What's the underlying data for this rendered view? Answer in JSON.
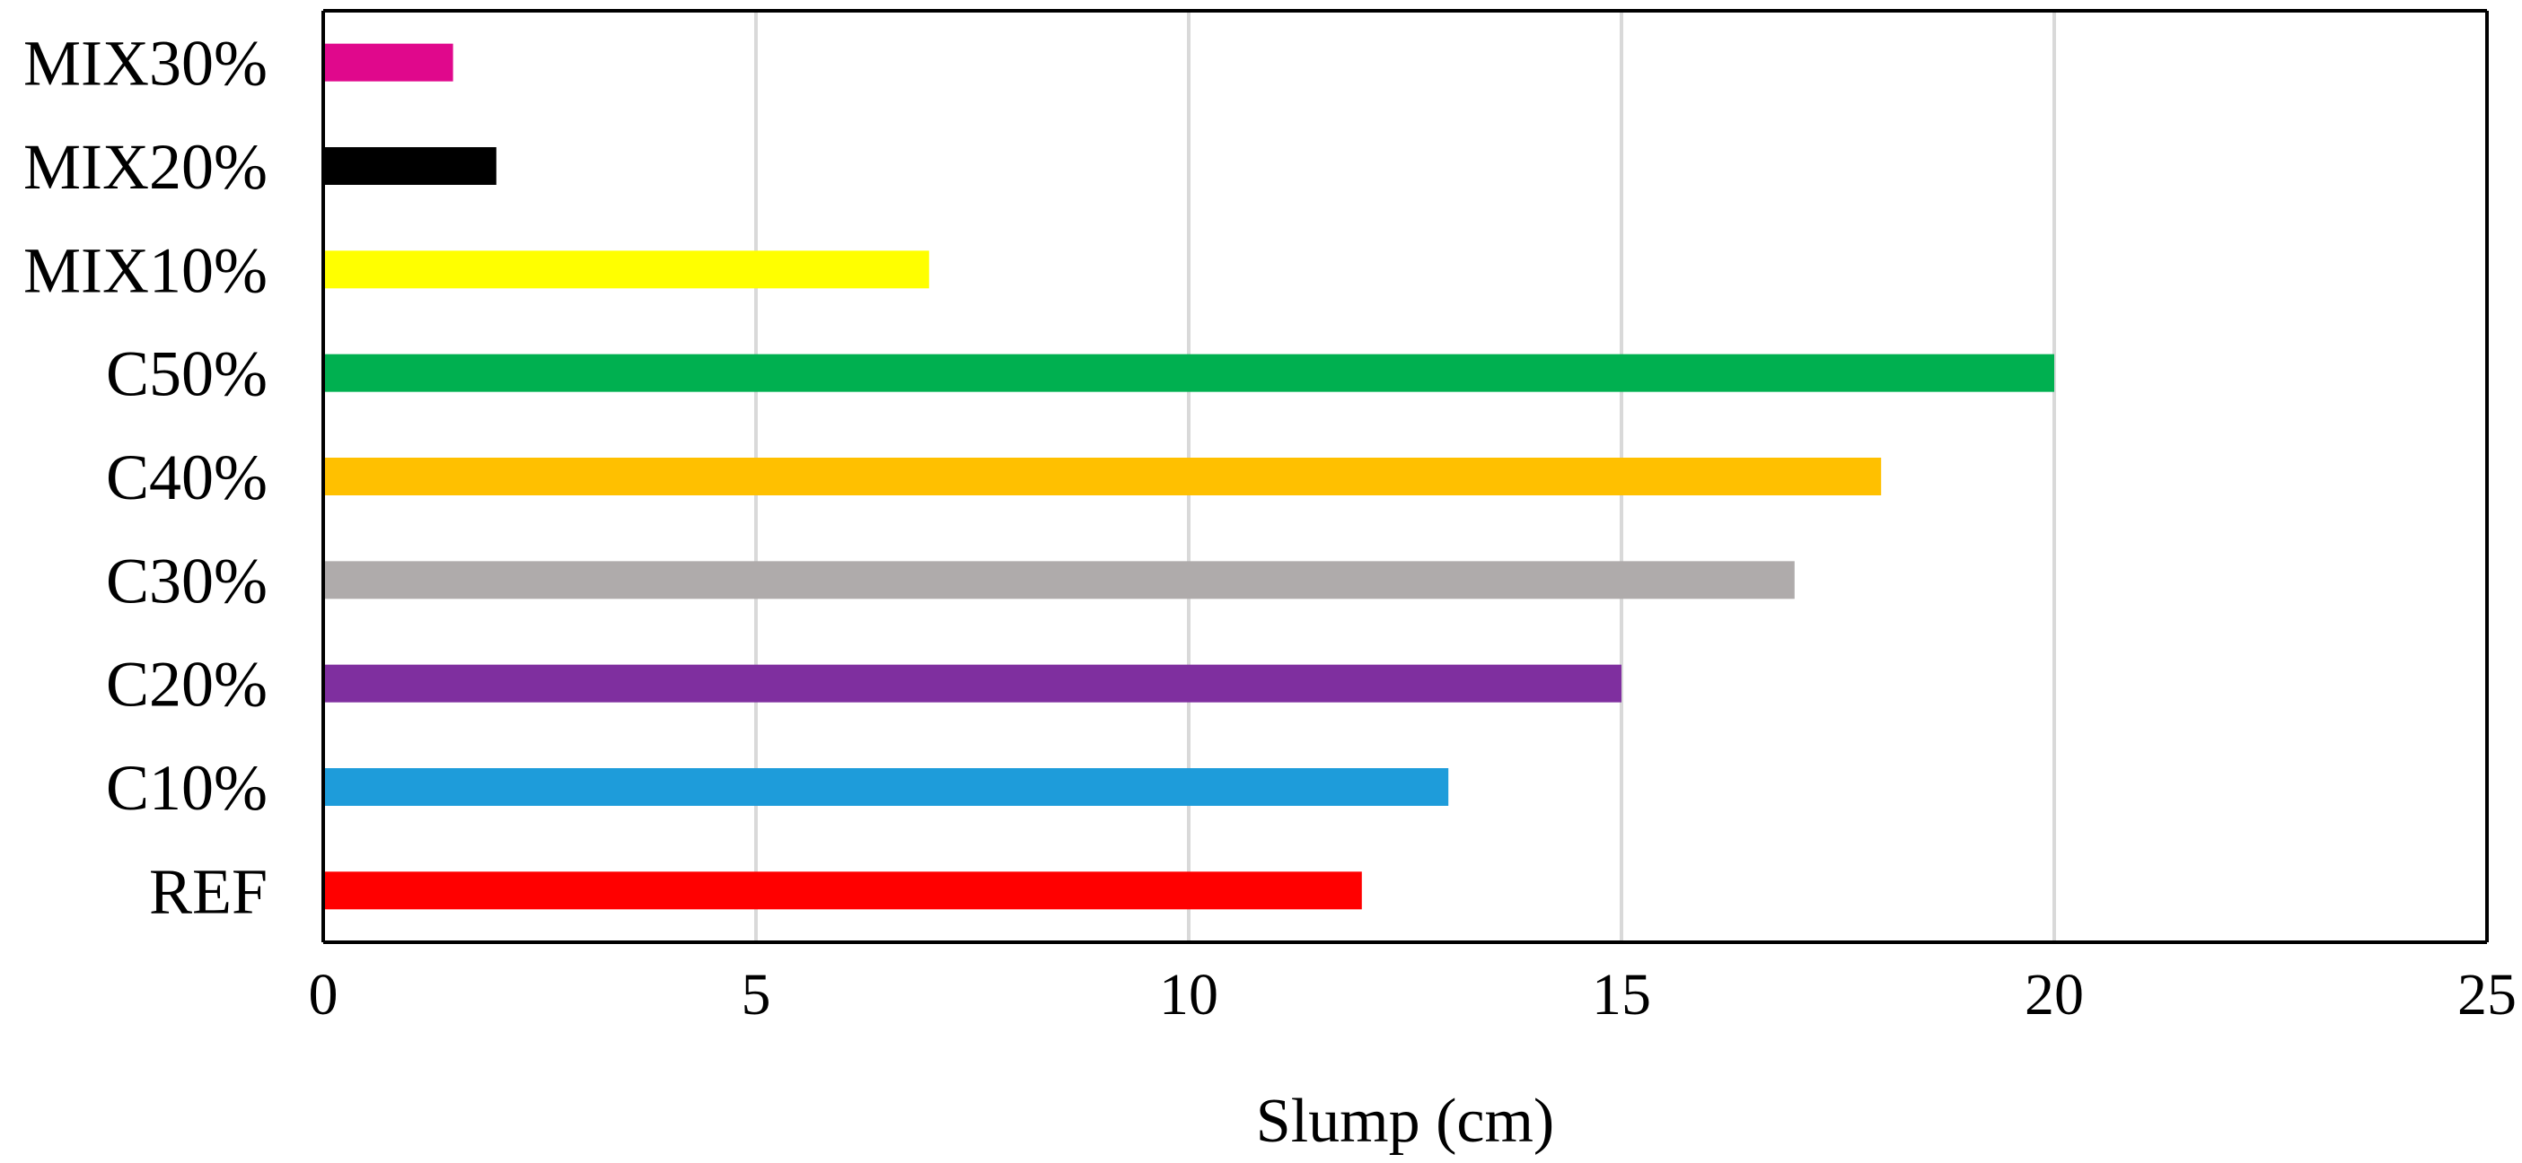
{
  "chart_data": {
    "type": "bar",
    "orientation": "horizontal",
    "title": "",
    "xlabel": "Slump  (cm)",
    "ylabel": "",
    "xlim": [
      0,
      25
    ],
    "x_ticks": [
      0,
      5,
      10,
      15,
      20,
      25
    ],
    "grid": "vertical",
    "categories": [
      "MIX30%",
      "MIX20%",
      "MIX10%",
      "C50%",
      "C40%",
      "C30%",
      "C20%",
      "C10%",
      "REF"
    ],
    "values": [
      1.5,
      2,
      7,
      20,
      18,
      17,
      15,
      13,
      12
    ],
    "colors": [
      "#E0088C",
      "#000000",
      "#FFFF00",
      "#00B050",
      "#FFC000",
      "#AFABAB",
      "#7F2F9F",
      "#1E9CDA",
      "#FF0000"
    ]
  }
}
